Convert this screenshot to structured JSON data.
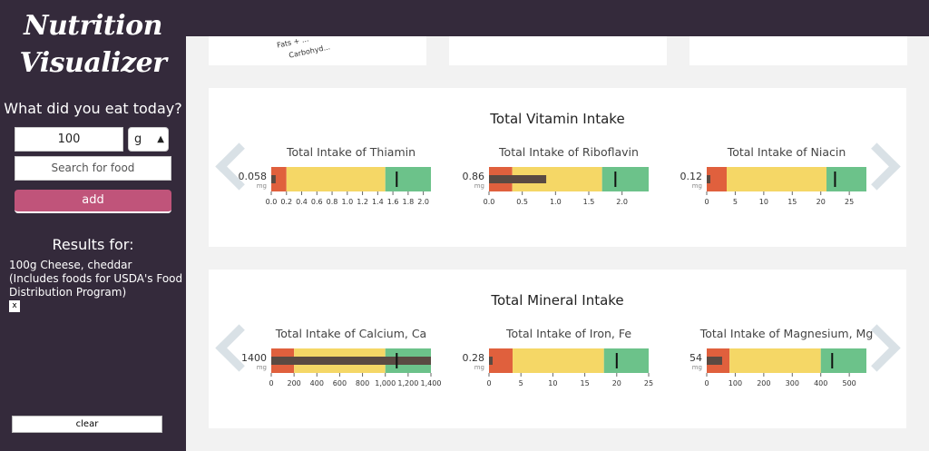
{
  "app": {
    "title_line1": "Nutrition",
    "title_line2": "Visualizer"
  },
  "sidebar": {
    "question": "What did you eat today?",
    "quantity_value": "100",
    "unit_value": "g",
    "search_placeholder": "Search for food",
    "add_label": "add",
    "results_heading": "Results for:",
    "result_food": "100g Cheese, cheddar (Includes foods for USDA's Food Distribution Program)",
    "remove_label": "x",
    "clear_label": "clear"
  },
  "top_partial": {
    "labels": [
      "Fats + ...",
      "Carbohyd..."
    ]
  },
  "vitamin_panel": {
    "title": "Total Vitamin Intake",
    "charts": [
      {
        "title": "Total Intake of Thiamin",
        "value_text": "0.058",
        "unit": "mg",
        "value": 0.058,
        "max": 2.1,
        "ranges": [
          {
            "to": 0.2,
            "color": "#e0603d"
          },
          {
            "to": 1.5,
            "color": "#f5d766"
          },
          {
            "to": 2.1,
            "color": "#6cc28a"
          }
        ],
        "target": 1.65,
        "ticks": [
          "0.0",
          "0.2",
          "0.4",
          "0.6",
          "0.8",
          "1.0",
          "1.2",
          "1.4",
          "1.6",
          "1.8",
          "2.0"
        ],
        "tick_values": [
          0,
          0.2,
          0.4,
          0.6,
          0.8,
          1.0,
          1.2,
          1.4,
          1.6,
          1.8,
          2.0
        ]
      },
      {
        "title": "Total Intake of Riboflavin",
        "value_text": "0.86",
        "unit": "mg",
        "value": 0.86,
        "max": 2.4,
        "ranges": [
          {
            "to": 0.35,
            "color": "#e0603d"
          },
          {
            "to": 1.7,
            "color": "#f5d766"
          },
          {
            "to": 2.4,
            "color": "#6cc28a"
          }
        ],
        "target": 1.9,
        "ticks": [
          "0.0",
          "0.5",
          "1.0",
          "1.5",
          "2.0"
        ],
        "tick_values": [
          0,
          0.5,
          1.0,
          1.5,
          2.0
        ]
      },
      {
        "title": "Total Intake of Niacin",
        "value_text": "0.12",
        "unit": "mg",
        "value": 0.12,
        "max": 28,
        "ranges": [
          {
            "to": 3.5,
            "color": "#e0603d"
          },
          {
            "to": 21,
            "color": "#f5d766"
          },
          {
            "to": 28,
            "color": "#6cc28a"
          }
        ],
        "target": 22.5,
        "ticks": [
          "0",
          "5",
          "10",
          "15",
          "20",
          "25"
        ],
        "tick_values": [
          0,
          5,
          10,
          15,
          20,
          25
        ]
      }
    ]
  },
  "mineral_panel": {
    "title": "Total Mineral Intake",
    "charts": [
      {
        "title": "Total Intake of Calcium, Ca",
        "value_text": "1400",
        "unit": "mg",
        "value": 1400,
        "max": 1400,
        "ranges": [
          {
            "to": 200,
            "color": "#e0603d"
          },
          {
            "to": 1000,
            "color": "#f5d766"
          },
          {
            "to": 1400,
            "color": "#6cc28a"
          }
        ],
        "target": 1100,
        "ticks": [
          "0",
          "200",
          "400",
          "600",
          "800",
          "1,000",
          "1,200",
          "1,400"
        ],
        "tick_values": [
          0,
          200,
          400,
          600,
          800,
          1000,
          1200,
          1400
        ]
      },
      {
        "title": "Total Intake of Iron, Fe",
        "value_text": "0.28",
        "unit": "mg",
        "value": 0.28,
        "max": 25,
        "ranges": [
          {
            "to": 3.7,
            "color": "#e0603d"
          },
          {
            "to": 18,
            "color": "#f5d766"
          },
          {
            "to": 25,
            "color": "#6cc28a"
          }
        ],
        "target": 20,
        "ticks": [
          "0",
          "5",
          "10",
          "15",
          "20",
          "25"
        ],
        "tick_values": [
          0,
          5,
          10,
          15,
          20,
          25
        ]
      },
      {
        "title": "Total Intake of Magnesium, Mg",
        "value_text": "54",
        "unit": "mg",
        "value": 54,
        "max": 560,
        "ranges": [
          {
            "to": 80,
            "color": "#e0603d"
          },
          {
            "to": 400,
            "color": "#f5d766"
          },
          {
            "to": 560,
            "color": "#6cc28a"
          }
        ],
        "target": 440,
        "ticks": [
          "0",
          "100",
          "200",
          "300",
          "400",
          "500"
        ],
        "tick_values": [
          0,
          100,
          200,
          300,
          400,
          500
        ]
      }
    ]
  },
  "icons": {
    "prev": "chevron-left-icon",
    "next": "chevron-right-icon"
  }
}
